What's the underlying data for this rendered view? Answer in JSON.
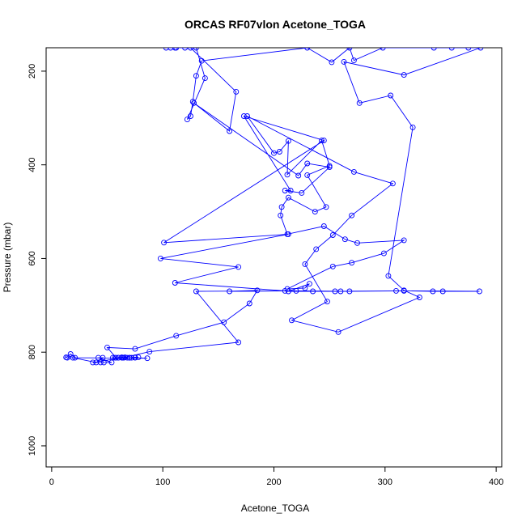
{
  "chart_data": {
    "type": "scatter",
    "title": "ORCAS RF07vlon Acetone_TOGA",
    "xlabel": "Acetone_TOGA",
    "ylabel": "Pressure (mbar)",
    "xlim": [
      -5,
      405
    ],
    "ylim": [
      1045,
      150
    ],
    "y_reversed": true,
    "xticks": [
      0,
      100,
      200,
      300,
      400
    ],
    "yticks": [
      200,
      400,
      600,
      800,
      1000
    ],
    "grid": false,
    "legend": "none",
    "line_color": "#0000ff",
    "marker": "open-circle",
    "series": [
      {
        "values": [
          [
            55,
            812
          ],
          [
            60,
            812
          ],
          [
            65,
            812
          ],
          [
            70,
            812
          ],
          [
            75,
            811
          ],
          [
            78,
            811
          ],
          [
            72,
            812
          ],
          [
            68,
            812
          ],
          [
            63,
            811
          ],
          [
            58,
            812
          ],
          [
            50,
            790
          ],
          [
            75,
            793
          ],
          [
            112,
            765
          ],
          [
            155,
            736
          ],
          [
            178,
            696
          ],
          [
            185,
            668
          ],
          [
            160,
            670
          ],
          [
            220,
            669
          ],
          [
            260,
            670
          ],
          [
            310,
            669
          ],
          [
            385,
            670
          ],
          [
            352,
            670
          ],
          [
            343,
            670
          ],
          [
            317,
            669
          ],
          [
            268,
            670
          ],
          [
            255,
            670
          ],
          [
            235,
            670
          ],
          [
            213,
            670
          ],
          [
            232,
            654
          ],
          [
            228,
            663
          ],
          [
            212,
            665
          ],
          [
            253,
            617
          ],
          [
            270,
            609
          ],
          [
            299,
            589
          ],
          [
            317,
            561
          ],
          [
            275,
            567
          ],
          [
            264,
            559
          ],
          [
            245,
            531
          ],
          [
            212,
            548
          ],
          [
            206,
            508
          ],
          [
            207,
            490
          ],
          [
            213,
            470
          ],
          [
            237,
            500
          ],
          [
            247,
            490
          ],
          [
            230,
            422
          ],
          [
            250,
            402
          ],
          [
            243,
            348
          ],
          [
            212,
            421
          ],
          [
            213,
            349
          ],
          [
            205,
            372
          ],
          [
            200,
            375
          ],
          [
            176,
            296
          ],
          [
            272,
            415
          ],
          [
            307,
            440
          ],
          [
            270,
            508
          ],
          [
            253,
            550
          ],
          [
            238,
            580
          ],
          [
            228,
            612
          ],
          [
            248,
            692
          ],
          [
            216,
            732
          ],
          [
            258,
            757
          ],
          [
            331,
            683
          ],
          [
            317,
            668
          ],
          [
            303,
            637
          ],
          [
            325,
            320
          ],
          [
            305,
            252
          ],
          [
            277,
            268
          ],
          [
            263,
            180
          ],
          [
            317,
            208
          ],
          [
            386,
            150
          ],
          [
            375,
            150
          ],
          [
            360,
            150
          ],
          [
            344,
            150
          ],
          [
            298,
            150
          ],
          [
            272,
            177
          ],
          [
            268,
            150
          ],
          [
            252,
            181
          ],
          [
            230,
            150
          ],
          [
            135,
            178
          ],
          [
            130,
            210
          ],
          [
            127,
            265
          ],
          [
            125,
            296
          ],
          [
            122,
            303
          ],
          [
            138,
            215
          ],
          [
            130,
            150
          ],
          [
            120,
            150
          ],
          [
            112,
            150
          ],
          [
            107,
            150
          ],
          [
            103,
            150
          ],
          [
            111,
            150
          ],
          [
            125,
            150
          ],
          [
            166,
            244
          ],
          [
            160,
            328
          ],
          [
            128,
            268
          ],
          [
            222,
            423
          ],
          [
            230,
            397
          ],
          [
            250,
            405
          ],
          [
            225,
            460
          ],
          [
            210,
            455
          ],
          [
            215,
            455
          ],
          [
            173,
            296
          ],
          [
            245,
            348
          ],
          [
            101,
            566
          ],
          [
            213,
            548
          ],
          [
            98,
            600
          ],
          [
            168,
            618
          ],
          [
            111,
            652
          ],
          [
            210,
            669
          ],
          [
            130,
            670
          ],
          [
            168,
            779
          ],
          [
            88,
            799
          ],
          [
            66,
            811
          ],
          [
            37,
            822
          ],
          [
            44,
            822
          ],
          [
            47,
            822
          ],
          [
            54,
            822
          ],
          [
            42,
            812
          ],
          [
            46,
            812
          ],
          [
            40,
            822
          ],
          [
            19,
            812
          ],
          [
            14,
            812
          ],
          [
            13,
            811
          ],
          [
            17,
            804
          ],
          [
            21,
            812
          ],
          [
            86,
            813
          ],
          [
            75,
            812
          ],
          [
            70,
            812
          ],
          [
            63,
            812
          ],
          [
            60,
            812
          ],
          [
            57,
            812
          ],
          [
            64,
            812
          ]
        ]
      }
    ]
  }
}
